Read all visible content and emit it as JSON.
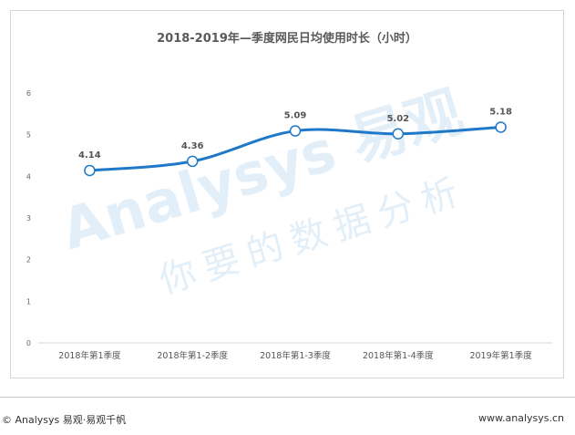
{
  "chart_data": {
    "type": "line",
    "title": "2018-2019年—季度网民日均使用时长（小时）",
    "categories": [
      "2018年第1季度",
      "2018年第1-2季度",
      "2018年第1-3季度",
      "2018年第1-4季度",
      "2019年第1季度"
    ],
    "series": [
      {
        "values": [
          4.14,
          4.36,
          5.09,
          5.02,
          5.18
        ]
      }
    ],
    "data_labels": [
      "4.14",
      "4.36",
      "5.09",
      "5.02",
      "5.18"
    ],
    "y_ticks": [
      "0",
      "1",
      "2",
      "3",
      "4",
      "5",
      "6"
    ],
    "ylim": [
      0,
      6
    ],
    "grid": false,
    "line_color": "#1f78c8"
  },
  "watermark": {
    "brand": "Analysys 易观",
    "slogan": "你要的数据分析"
  },
  "footer": {
    "left": "© Analysys 易观·易观千帆",
    "right": "www.analysys.cn"
  }
}
